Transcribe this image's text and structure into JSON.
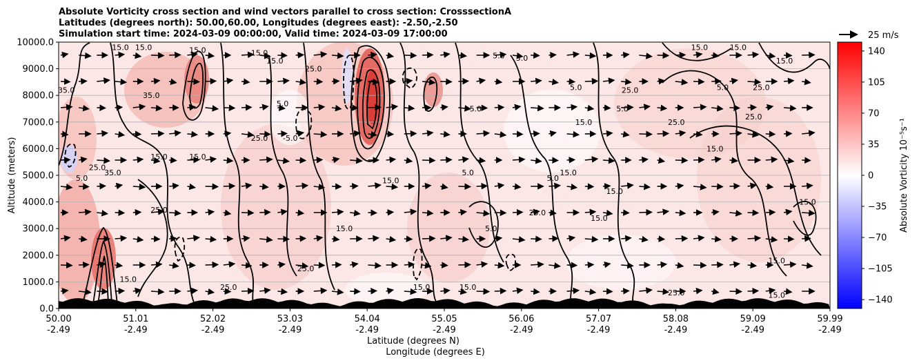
{
  "chart_data": {
    "type": "contour_cross_section",
    "title_lines": [
      "Absolute Vorticity cross section and wind vectors parallel to cross section: CrosssectionA",
      "Latitudes (degrees north): 50.00,60.00, Longitudes (degrees east): -2.50,-2.50",
      "Simulation start time: 2024-03-09 00:00:00, Valid time: 2024-03-09 17:00:00"
    ],
    "ylabel": "Altitude (meters)",
    "xlabel_line1": "Latitude (degrees N)",
    "xlabel_line2": "Longitude (degrees E)",
    "ylim": [
      0,
      10000
    ],
    "y_ticks": [
      "0.0",
      "1000.0",
      "2000.0",
      "3000.0",
      "4000.0",
      "5000.0",
      "6000.0",
      "7000.0",
      "8000.0",
      "9000.0",
      "10000.0"
    ],
    "x_ticks_lat": [
      "50.00",
      "51.01",
      "52.02",
      "53.03",
      "54.04",
      "55.05",
      "56.06",
      "57.07",
      "58.08",
      "59.09",
      "59.99"
    ],
    "x_ticks_lon": [
      "-2.49",
      "-2.49",
      "-2.49",
      "-2.49",
      "-2.49",
      "-2.49",
      "-2.49",
      "-2.49",
      "-2.49",
      "-2.49",
      "-2.49"
    ],
    "grid": "horizontal",
    "colorbar": {
      "label": "Absolute Vorticity 10⁻⁵s⁻¹",
      "range": [
        -150,
        150
      ],
      "ticks": [
        "140",
        "105",
        "70",
        "35",
        "0",
        "−35",
        "−70",
        "−105",
        "−140"
      ],
      "cmap": "bwr"
    },
    "quiver_key": "25 m/s",
    "contour_levels_labelled": [
      "5.0",
      "15.0",
      "25.0",
      "35.0",
      "-5.0"
    ],
    "contour_labels": [
      {
        "text": "15.0",
        "lat": 50.8,
        "alt": 9800
      },
      {
        "text": "15.0",
        "lat": 51.1,
        "alt": 9800
      },
      {
        "text": "15.0",
        "lat": 51.8,
        "alt": 9700
      },
      {
        "text": "15.0",
        "lat": 52.6,
        "alt": 9600
      },
      {
        "text": "15.0",
        "lat": 52.8,
        "alt": 9300
      },
      {
        "text": "25.0",
        "lat": 53.3,
        "alt": 9000
      },
      {
        "text": "5.0",
        "lat": 55.7,
        "alt": 9500
      },
      {
        "text": "5.0",
        "lat": 56.0,
        "alt": 9400
      },
      {
        "text": "15.0",
        "lat": 58.3,
        "alt": 9800
      },
      {
        "text": "15.0",
        "lat": 58.8,
        "alt": 9800
      },
      {
        "text": "15.0",
        "lat": 59.4,
        "alt": 9300
      },
      {
        "text": "35.0",
        "lat": 50.1,
        "alt": 8200
      },
      {
        "text": "35.0",
        "lat": 51.2,
        "alt": 8000
      },
      {
        "text": "5.0",
        "lat": 52.9,
        "alt": 7700
      },
      {
        "text": "-5.0",
        "lat": 53.0,
        "alt": 6400
      },
      {
        "text": "5.0",
        "lat": 55.4,
        "alt": 7500
      },
      {
        "text": "5.0",
        "lat": 56.7,
        "alt": 8300
      },
      {
        "text": "15.0",
        "lat": 56.8,
        "alt": 7000
      },
      {
        "text": "5.0",
        "lat": 57.3,
        "alt": 7500
      },
      {
        "text": "25.0",
        "lat": 57.4,
        "alt": 8200
      },
      {
        "text": "25.0",
        "lat": 58.0,
        "alt": 7000
      },
      {
        "text": "25.0",
        "lat": 59.0,
        "alt": 7200
      },
      {
        "text": "25.0",
        "lat": 59.1,
        "alt": 8300
      },
      {
        "text": "5.0",
        "lat": 58.6,
        "alt": 8300
      },
      {
        "text": "15.0",
        "lat": 58.5,
        "alt": 6000
      },
      {
        "text": "25.0",
        "lat": 52.6,
        "alt": 6400
      },
      {
        "text": "15.0",
        "lat": 51.3,
        "alt": 5700
      },
      {
        "text": "15.0",
        "lat": 51.8,
        "alt": 5700
      },
      {
        "text": "5.0",
        "lat": 56.4,
        "alt": 4900
      },
      {
        "text": "15.0",
        "lat": 56.6,
        "alt": 5100
      },
      {
        "text": "15.0",
        "lat": 57.2,
        "alt": 4400
      },
      {
        "text": "15.0",
        "lat": 59.7,
        "alt": 4000
      },
      {
        "text": "5.0",
        "lat": 50.3,
        "alt": 4900
      },
      {
        "text": "25.0",
        "lat": 50.5,
        "alt": 5300
      },
      {
        "text": "35.0",
        "lat": 50.7,
        "alt": 5100
      },
      {
        "text": "25.0",
        "lat": 51.3,
        "alt": 3700
      },
      {
        "text": "15.0",
        "lat": 54.3,
        "alt": 4800
      },
      {
        "text": "5.0",
        "lat": 55.3,
        "alt": 5100
      },
      {
        "text": "25.0",
        "lat": 56.2,
        "alt": 3600
      },
      {
        "text": "15.0",
        "lat": 57.0,
        "alt": 3400
      },
      {
        "text": "5.0",
        "lat": 55.6,
        "alt": 3000
      },
      {
        "text": "15.0",
        "lat": 53.7,
        "alt": 3000
      },
      {
        "text": "25.0",
        "lat": 53.2,
        "alt": 1500
      },
      {
        "text": "15.0",
        "lat": 59.3,
        "alt": 1800
      },
      {
        "text": "25.0",
        "lat": 58.0,
        "alt": 600
      },
      {
        "text": "15.0",
        "lat": 50.9,
        "alt": 1100
      },
      {
        "text": "25.0",
        "lat": 52.2,
        "alt": 800
      },
      {
        "text": "15.0",
        "lat": 54.7,
        "alt": 800
      },
      {
        "text": "15.0",
        "lat": 55.3,
        "alt": 800
      },
      {
        "text": "15.0",
        "lat": 59.3,
        "alt": 500
      }
    ]
  }
}
